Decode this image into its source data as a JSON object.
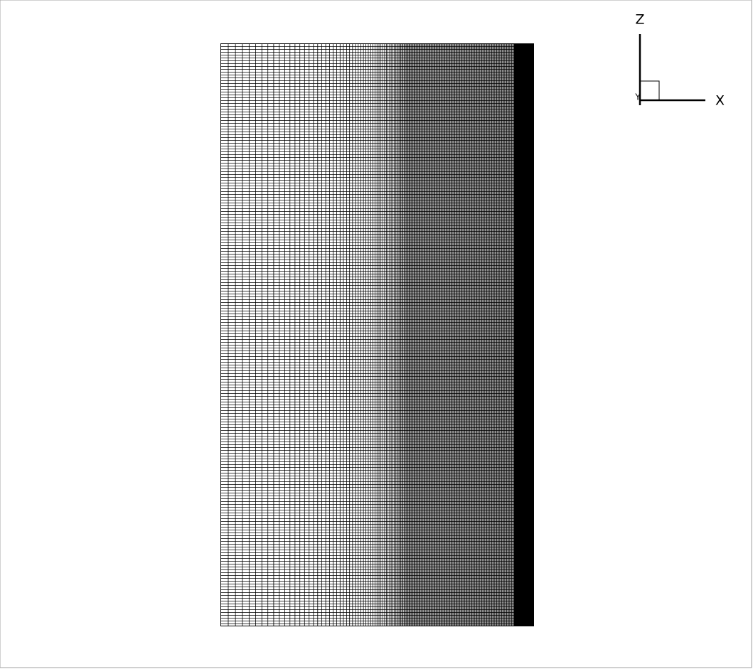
{
  "axes": {
    "z_label": "Z",
    "x_label": "X",
    "y_label": "Y"
  }
}
